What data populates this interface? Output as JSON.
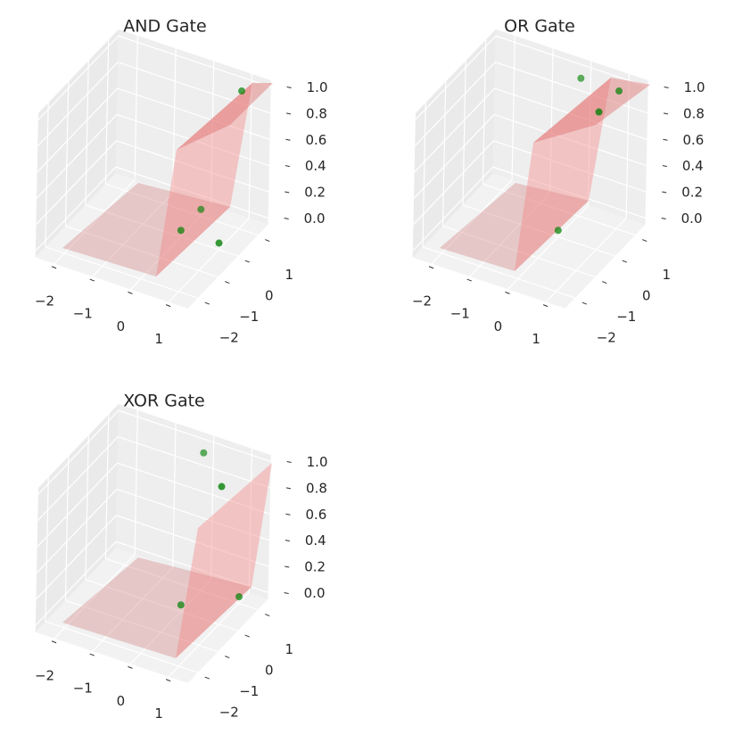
{
  "chart_data": [
    {
      "type": "scatter3d",
      "title": "AND Gate",
      "color": "green",
      "x": [
        0,
        0,
        1,
        1
      ],
      "y": [
        0,
        1,
        0,
        1
      ],
      "z": [
        0,
        0,
        0,
        1
      ],
      "xlim": [
        -2.5,
        1.5
      ],
      "ylim": [
        -2.5,
        1.5
      ],
      "zlim": [
        -0.05,
        1.05
      ],
      "xticks": [
        {
          "value": -2,
          "label": "−2"
        },
        {
          "value": -1,
          "label": "−1"
        },
        0,
        1
      ],
      "yticks": [
        {
          "value": -2,
          "label": "−2"
        },
        {
          "value": -1,
          "label": "−1"
        },
        0,
        1
      ],
      "zticks": [
        {
          "value": 0,
          "label": "0.0"
        },
        0.2,
        0.4,
        0.6,
        0.8,
        {
          "value": 1,
          "label": "1.0"
        }
      ],
      "grid": true
    },
    {
      "type": "scatter3d",
      "title": "OR Gate",
      "color": "green",
      "x": [
        0,
        0,
        1,
        1
      ],
      "y": [
        0,
        1,
        0,
        1
      ],
      "z": [
        0,
        1,
        1,
        1
      ],
      "xlim": [
        -2.5,
        1.5
      ],
      "ylim": [
        -2.5,
        1.5
      ],
      "zlim": [
        -0.05,
        1.05
      ],
      "xticks": [
        {
          "value": -2,
          "label": "−2"
        },
        {
          "value": -1,
          "label": "−1"
        },
        0,
        1
      ],
      "yticks": [
        {
          "value": -2,
          "label": "−2"
        },
        {
          "value": -1,
          "label": "−1"
        },
        0,
        1
      ],
      "zticks": [
        {
          "value": 0,
          "label": "0.0"
        },
        0.2,
        0.4,
        0.6,
        0.8,
        {
          "value": 1,
          "label": "1.0"
        }
      ],
      "grid": true
    },
    {
      "type": "scatter3d",
      "title": "XOR Gate",
      "color": "green",
      "x": [
        0,
        0,
        1,
        1
      ],
      "y": [
        0,
        1,
        0,
        1
      ],
      "z": [
        0,
        1,
        1,
        0
      ],
      "xlim": [
        -2.5,
        1.5
      ],
      "ylim": [
        -2.5,
        1.5
      ],
      "zlim": [
        -0.05,
        1.05
      ],
      "xticks": [
        {
          "value": -2,
          "label": "−2"
        },
        {
          "value": -1,
          "label": "−1"
        },
        0,
        1
      ],
      "yticks": [
        {
          "value": -2,
          "label": "−2"
        },
        {
          "value": -1,
          "label": "−1"
        },
        0,
        1
      ],
      "zticks": [
        {
          "value": 0,
          "label": "0.0"
        },
        0.2,
        0.4,
        0.6,
        0.8,
        {
          "value": 1,
          "label": "1.0"
        }
      ],
      "grid": true
    }
  ]
}
